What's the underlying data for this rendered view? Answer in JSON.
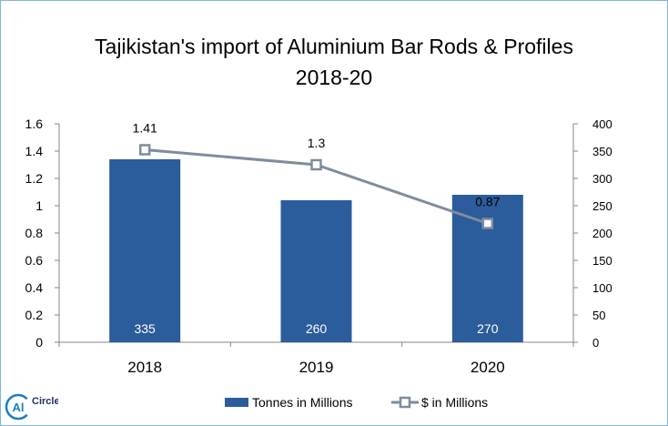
{
  "chart_data": {
    "type": "bar",
    "title_line1": "Tajikistan's import of Aluminium Bar Rods & Profiles",
    "title_line2": "2018-20",
    "categories": [
      "2018",
      "2019",
      "2020"
    ],
    "series": [
      {
        "name": "Tonnes in Millions",
        "type": "bar",
        "axis": "right",
        "color": "#2b5c9b",
        "values": [
          335,
          260,
          270
        ],
        "labels": [
          "335",
          "260",
          "270"
        ]
      },
      {
        "name": "$ in Millions",
        "type": "line",
        "axis": "left",
        "color": "#7f8c9d",
        "values": [
          1.41,
          1.3,
          0.87
        ],
        "labels": [
          "1.41",
          "1.3",
          "0.87"
        ]
      }
    ],
    "y_left": {
      "min": 0,
      "max": 1.6,
      "ticks": [
        "0",
        "0.2",
        "0.4",
        "0.6",
        "0.8",
        "1",
        "1.2",
        "1.4",
        "1.6"
      ]
    },
    "y_right": {
      "min": 0,
      "max": 400,
      "ticks": [
        "0",
        "50",
        "100",
        "150",
        "200",
        "250",
        "300",
        "350",
        "400"
      ]
    },
    "legend_position": "bottom",
    "grid": false
  },
  "logo": {
    "text": "Al",
    "brand": "Circle"
  }
}
